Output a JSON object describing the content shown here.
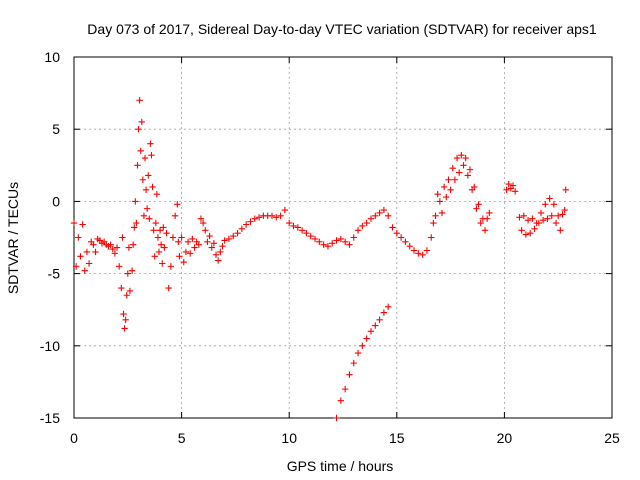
{
  "chart_data": {
    "type": "scatter",
    "title": "Day 073 of 2017, Sidereal Day-to-day VTEC variation (SDTVAR) for receiver aps1",
    "xlabel": "GPS time / hours",
    "ylabel": "SDTVAR / TECUs",
    "xlim": [
      0,
      25
    ],
    "ylim": [
      -15,
      10
    ],
    "xticks": [
      0,
      5,
      10,
      15,
      20,
      25
    ],
    "yticks": [
      -15,
      -10,
      -5,
      0,
      5,
      10
    ],
    "xtick_labels": [
      "0",
      "5",
      "10",
      "15",
      "20",
      "25"
    ],
    "ytick_labels": [
      "-15",
      "-10",
      "-5",
      "0",
      "5",
      "10"
    ],
    "grid": true,
    "marker": "plus",
    "color": "#ff0000",
    "series": [
      {
        "name": "SDTVAR",
        "points": [
          [
            0.0,
            -1.5
          ],
          [
            0.1,
            -4.5
          ],
          [
            0.2,
            -2.5
          ],
          [
            0.3,
            -3.8
          ],
          [
            0.4,
            -1.6
          ],
          [
            0.5,
            -4.8
          ],
          [
            0.6,
            -3.5
          ],
          [
            0.7,
            -4.3
          ],
          [
            0.8,
            -2.8
          ],
          [
            0.9,
            -3.0
          ],
          [
            1.0,
            -3.5
          ],
          [
            1.1,
            -2.6
          ],
          [
            1.2,
            -2.7
          ],
          [
            1.3,
            -2.9
          ],
          [
            1.4,
            -2.8
          ],
          [
            1.5,
            -3.0
          ],
          [
            1.6,
            -3.1
          ],
          [
            1.7,
            -3.0
          ],
          [
            1.8,
            -3.3
          ],
          [
            1.9,
            -3.6
          ],
          [
            2.0,
            -3.2
          ],
          [
            2.1,
            -4.5
          ],
          [
            2.2,
            -6.0
          ],
          [
            2.25,
            -2.5
          ],
          [
            2.3,
            -7.8
          ],
          [
            2.35,
            -8.8
          ],
          [
            2.4,
            -8.2
          ],
          [
            2.45,
            -6.5
          ],
          [
            2.5,
            -5.0
          ],
          [
            2.55,
            -3.2
          ],
          [
            2.6,
            -6.2
          ],
          [
            2.7,
            -4.8
          ],
          [
            2.75,
            -3.0
          ],
          [
            2.8,
            -1.8
          ],
          [
            2.85,
            0.0
          ],
          [
            2.9,
            -1.5
          ],
          [
            2.95,
            2.5
          ],
          [
            3.0,
            5.0
          ],
          [
            3.05,
            7.0
          ],
          [
            3.1,
            3.5
          ],
          [
            3.15,
            5.5
          ],
          [
            3.2,
            1.5
          ],
          [
            3.25,
            -1.0
          ],
          [
            3.3,
            3.0
          ],
          [
            3.35,
            0.8
          ],
          [
            3.4,
            -0.5
          ],
          [
            3.45,
            1.8
          ],
          [
            3.5,
            -1.2
          ],
          [
            3.55,
            4.0
          ],
          [
            3.6,
            3.2
          ],
          [
            3.65,
            1.0
          ],
          [
            3.7,
            -2.0
          ],
          [
            3.75,
            -3.8
          ],
          [
            3.8,
            -1.5
          ],
          [
            3.85,
            0.5
          ],
          [
            3.9,
            -2.5
          ],
          [
            3.95,
            -3.5
          ],
          [
            4.0,
            -2.0
          ],
          [
            4.05,
            -3.0
          ],
          [
            4.1,
            -4.3
          ],
          [
            4.15,
            -1.8
          ],
          [
            4.2,
            -3.2
          ],
          [
            4.3,
            -2.2
          ],
          [
            4.4,
            -6.0
          ],
          [
            4.5,
            -4.5
          ],
          [
            4.6,
            -2.5
          ],
          [
            4.7,
            -1.0
          ],
          [
            4.8,
            -0.2
          ],
          [
            4.85,
            -2.8
          ],
          [
            4.9,
            -3.8
          ],
          [
            5.0,
            -2.5
          ],
          [
            5.1,
            -4.2
          ],
          [
            5.2,
            -3.5
          ],
          [
            5.3,
            -2.8
          ],
          [
            5.4,
            -3.6
          ],
          [
            5.5,
            -2.6
          ],
          [
            5.6,
            -3.2
          ],
          [
            5.7,
            -2.8
          ],
          [
            5.8,
            -3.0
          ],
          [
            5.9,
            -1.2
          ],
          [
            6.0,
            -1.5
          ],
          [
            6.1,
            -2.0
          ],
          [
            6.2,
            -2.8
          ],
          [
            6.3,
            -2.4
          ],
          [
            6.4,
            -3.2
          ],
          [
            6.5,
            -2.9
          ],
          [
            6.6,
            -3.7
          ],
          [
            6.7,
            -4.1
          ],
          [
            6.8,
            -3.5
          ],
          [
            6.9,
            -3.1
          ],
          [
            7.0,
            -2.7
          ],
          [
            7.2,
            -2.6
          ],
          [
            7.4,
            -2.4
          ],
          [
            7.6,
            -2.2
          ],
          [
            7.8,
            -1.9
          ],
          [
            8.0,
            -1.6
          ],
          [
            8.2,
            -1.4
          ],
          [
            8.4,
            -1.2
          ],
          [
            8.6,
            -1.1
          ],
          [
            8.8,
            -1.0
          ],
          [
            9.0,
            -1.0
          ],
          [
            9.2,
            -1.0
          ],
          [
            9.4,
            -1.1
          ],
          [
            9.6,
            -1.0
          ],
          [
            9.8,
            -0.6
          ],
          [
            10.0,
            -1.5
          ],
          [
            10.2,
            -1.7
          ],
          [
            10.4,
            -1.8
          ],
          [
            10.6,
            -2.0
          ],
          [
            10.8,
            -2.2
          ],
          [
            11.0,
            -2.4
          ],
          [
            11.2,
            -2.6
          ],
          [
            11.4,
            -2.8
          ],
          [
            11.6,
            -3.0
          ],
          [
            11.8,
            -3.1
          ],
          [
            12.0,
            -2.9
          ],
          [
            12.2,
            -2.7
          ],
          [
            12.4,
            -2.6
          ],
          [
            12.6,
            -2.8
          ],
          [
            12.8,
            -3.0
          ],
          [
            13.0,
            -2.5
          ],
          [
            13.2,
            -2.0
          ],
          [
            13.4,
            -1.7
          ],
          [
            13.6,
            -1.5
          ],
          [
            13.8,
            -1.2
          ],
          [
            14.0,
            -1.0
          ],
          [
            14.2,
            -0.8
          ],
          [
            14.4,
            -0.6
          ],
          [
            14.6,
            -1.0
          ],
          [
            14.8,
            -1.8
          ],
          [
            15.0,
            -2.2
          ],
          [
            15.2,
            -2.5
          ],
          [
            15.4,
            -2.8
          ],
          [
            15.6,
            -3.1
          ],
          [
            15.8,
            -3.4
          ],
          [
            16.0,
            -3.6
          ],
          [
            16.2,
            -3.7
          ],
          [
            16.4,
            -3.4
          ],
          [
            16.6,
            -2.5
          ],
          [
            16.7,
            -1.5
          ],
          [
            16.8,
            -1.0
          ],
          [
            16.9,
            0.5
          ],
          [
            17.0,
            0.0
          ],
          [
            17.1,
            -0.8
          ],
          [
            17.2,
            1.0
          ],
          [
            17.3,
            0.3
          ],
          [
            17.4,
            1.5
          ],
          [
            17.5,
            0.8
          ],
          [
            17.6,
            2.3
          ],
          [
            17.7,
            1.5
          ],
          [
            17.8,
            3.0
          ],
          [
            17.9,
            2.0
          ],
          [
            18.0,
            3.2
          ],
          [
            18.1,
            2.5
          ],
          [
            18.2,
            3.0
          ],
          [
            18.3,
            1.8
          ],
          [
            18.4,
            2.2
          ],
          [
            18.5,
            0.8
          ],
          [
            18.6,
            1.0
          ],
          [
            18.7,
            -0.5
          ],
          [
            18.8,
            -0.2
          ],
          [
            18.9,
            -1.5
          ],
          [
            19.0,
            -1.2
          ],
          [
            19.1,
            -2.0
          ],
          [
            19.2,
            -1.2
          ],
          [
            19.3,
            -0.8
          ],
          [
            20.1,
            0.8
          ],
          [
            20.2,
            1.2
          ],
          [
            20.3,
            0.9
          ],
          [
            20.4,
            1.1
          ],
          [
            20.5,
            0.7
          ],
          [
            20.7,
            -1.1
          ],
          [
            20.8,
            -2.0
          ],
          [
            20.9,
            -1.0
          ],
          [
            21.0,
            -2.3
          ],
          [
            21.1,
            -1.3
          ],
          [
            21.2,
            -2.2
          ],
          [
            21.3,
            -1.2
          ],
          [
            21.4,
            -1.9
          ],
          [
            21.5,
            -1.5
          ],
          [
            21.6,
            -1.5
          ],
          [
            21.7,
            -0.8
          ],
          [
            21.8,
            -1.3
          ],
          [
            21.9,
            -0.2
          ],
          [
            22.0,
            -1.2
          ],
          [
            22.1,
            0.2
          ],
          [
            22.2,
            -1.0
          ],
          [
            22.3,
            -0.2
          ],
          [
            22.4,
            -1.5
          ],
          [
            22.5,
            -1.0
          ],
          [
            22.6,
            -2.0
          ],
          [
            22.7,
            -0.9
          ],
          [
            22.8,
            -0.6
          ],
          [
            22.85,
            0.8
          ],
          [
            12.2,
            -15.0
          ],
          [
            12.4,
            -13.8
          ],
          [
            12.6,
            -13.0
          ],
          [
            12.8,
            -12.0
          ],
          [
            13.0,
            -11.2
          ],
          [
            13.2,
            -10.5
          ],
          [
            13.4,
            -10.0
          ],
          [
            13.6,
            -9.5
          ],
          [
            13.8,
            -9.0
          ],
          [
            14.0,
            -8.6
          ],
          [
            14.2,
            -8.2
          ],
          [
            14.4,
            -7.7
          ],
          [
            14.6,
            -7.3
          ]
        ]
      }
    ]
  }
}
